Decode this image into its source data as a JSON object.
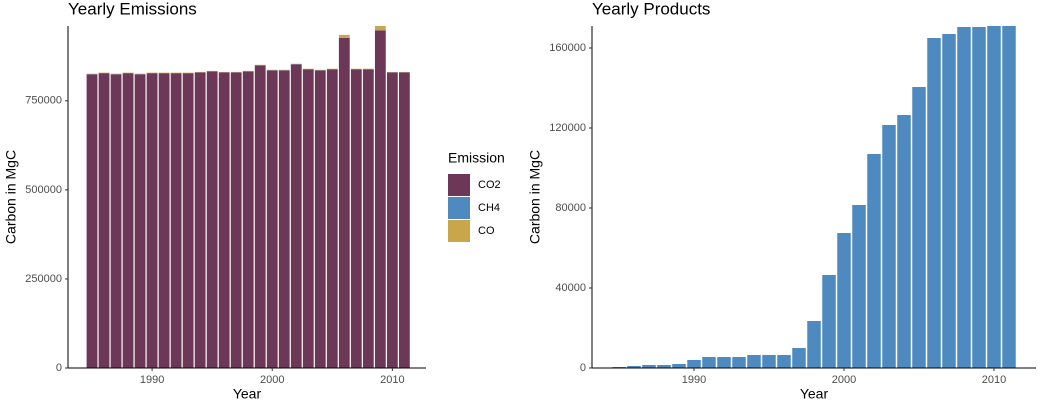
{
  "chart_data": [
    {
      "type": "bar",
      "stacked": true,
      "title": "Yearly Emissions",
      "x_label": "Year",
      "y_label": "Carbon in MgC",
      "legend_title": "Emission",
      "x": [
        1985,
        1986,
        1987,
        1988,
        1989,
        1990,
        1991,
        1992,
        1993,
        1994,
        1995,
        1996,
        1997,
        1998,
        1999,
        2000,
        2001,
        2002,
        2003,
        2004,
        2005,
        2006,
        2007,
        2008,
        2009,
        2010,
        2011
      ],
      "series": [
        {
          "name": "CO2",
          "color": "#6d3758",
          "values": [
            824500,
            827500,
            824500,
            827500,
            824500,
            827500,
            827500,
            827500,
            827500,
            829500,
            832500,
            829500,
            829500,
            832500,
            849500,
            835500,
            835500,
            852500,
            838500,
            835500,
            838500,
            926500,
            838500,
            838500,
            947500,
            829500,
            829500
          ]
        },
        {
          "name": "CH4",
          "color": "#4e8ac0",
          "values": [
            500,
            500,
            500,
            500,
            500,
            500,
            500,
            500,
            500,
            500,
            500,
            500,
            500,
            500,
            500,
            500,
            500,
            500,
            500,
            500,
            500,
            500,
            500,
            500,
            500,
            500,
            500
          ]
        },
        {
          "name": "CO",
          "color": "#c9a64a",
          "values": [
            1000,
            1000,
            1000,
            1000,
            1000,
            1000,
            1000,
            1000,
            1000,
            1000,
            1000,
            1000,
            1000,
            1000,
            1000,
            1000,
            1000,
            1000,
            1000,
            1000,
            1000,
            8000,
            1000,
            1000,
            12000,
            1000,
            1000
          ]
        }
      ],
      "xlim": [
        1983,
        2012.8
      ],
      "xticks": [
        1990,
        2000,
        2010
      ],
      "ylim": [
        0,
        960000
      ],
      "yticks": [
        0,
        250000,
        500000,
        750000
      ],
      "legend": "right"
    },
    {
      "type": "bar",
      "title": "Yearly Products",
      "x_label": "Year",
      "y_label": "Carbon in MgC",
      "x": [
        1985,
        1986,
        1987,
        1988,
        1989,
        1990,
        1991,
        1992,
        1993,
        1994,
        1995,
        1996,
        1997,
        1998,
        1999,
        2000,
        2001,
        2002,
        2003,
        2004,
        2005,
        2006,
        2007,
        2008,
        2009,
        2010,
        2011
      ],
      "series": [
        {
          "color": "#4e8ac0",
          "values": [
            500,
            1000,
            1500,
            1500,
            2000,
            4000,
            5500,
            5500,
            5500,
            6500,
            6500,
            6500,
            10000,
            23500,
            46500,
            67500,
            81500,
            107000,
            121500,
            126500,
            140500,
            165000,
            167000,
            170500,
            170500,
            171000,
            171000
          ]
        }
      ],
      "xlim": [
        1983.2,
        2012.8
      ],
      "xticks": [
        1990,
        2000,
        2010
      ],
      "ylim": [
        0,
        171000
      ],
      "yticks": [
        0,
        40000,
        80000,
        120000,
        160000
      ]
    }
  ]
}
